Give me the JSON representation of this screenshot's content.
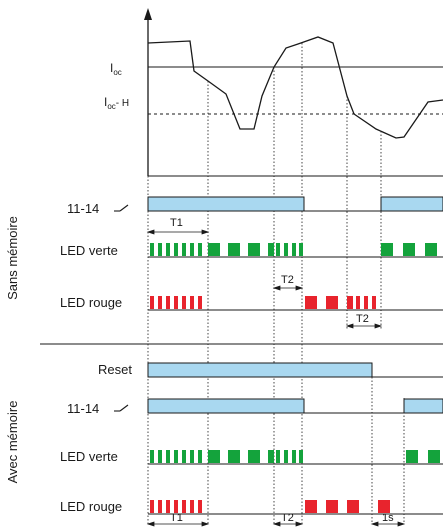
{
  "labels": {
    "ioc_main": "I",
    "ioc_sub": "oc",
    "ioc_h_main": "I",
    "ioc_h_sub": "oc",
    "ioc_h_suffix": "- H",
    "section_sans": "Sans mémoire",
    "section_avec": "Avec mémoire",
    "relay": "11-14",
    "led_verte": "LED verte",
    "led_rouge": "LED rouge",
    "reset": "Reset",
    "t1": "T1",
    "t2": "T2",
    "one_s": "1s"
  },
  "colors": {
    "relay_fill": "#a9d8f0",
    "green": "#14a33c",
    "red": "#e8242d",
    "line": "#1a1a1a"
  }
}
